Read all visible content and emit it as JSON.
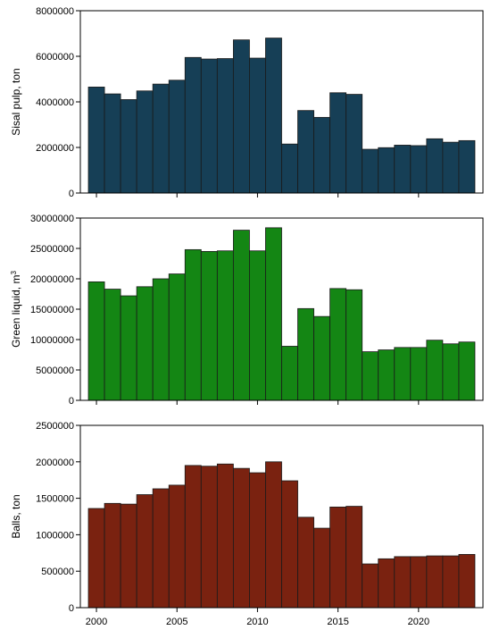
{
  "chart_data": [
    {
      "type": "bar",
      "title": "",
      "xlabel": "",
      "ylabel": "Sisal pulp, ton",
      "ylabel_sup": "",
      "color": "#163f56",
      "x": [
        2000,
        2001,
        2002,
        2003,
        2004,
        2005,
        2006,
        2007,
        2008,
        2009,
        2010,
        2011,
        2012,
        2013,
        2014,
        2015,
        2016,
        2017,
        2018,
        2019,
        2020,
        2021,
        2022,
        2023
      ],
      "values": [
        4650000,
        4350000,
        4100000,
        4480000,
        4780000,
        4950000,
        5950000,
        5880000,
        5900000,
        6720000,
        5920000,
        6800000,
        2150000,
        3620000,
        3320000,
        4400000,
        4330000,
        1920000,
        1990000,
        2100000,
        2080000,
        2380000,
        2230000,
        2300000
      ],
      "ylim": [
        0,
        8000000
      ],
      "yticks": [
        "0",
        "2000000",
        "4000000",
        "6000000",
        "8000000"
      ],
      "xlim": [
        1999,
        2024
      ],
      "xticks": [
        "2000",
        "2005",
        "2010",
        "2015",
        "2020"
      ]
    },
    {
      "type": "bar",
      "title": "",
      "xlabel": "",
      "ylabel": "Green liquid, m",
      "ylabel_sup": "3",
      "color": "#148614",
      "x": [
        2000,
        2001,
        2002,
        2003,
        2004,
        2005,
        2006,
        2007,
        2008,
        2009,
        2010,
        2011,
        2012,
        2013,
        2014,
        2015,
        2016,
        2017,
        2018,
        2019,
        2020,
        2021,
        2022,
        2023
      ],
      "values": [
        19500000,
        18300000,
        17200000,
        18700000,
        20000000,
        20800000,
        24800000,
        24500000,
        24600000,
        28000000,
        24600000,
        28400000,
        8900000,
        15100000,
        13800000,
        18400000,
        18200000,
        8000000,
        8300000,
        8700000,
        8700000,
        9900000,
        9300000,
        9600000
      ],
      "ylim": [
        0,
        30000000
      ],
      "yticks": [
        "0",
        "5000000",
        "10000000",
        "15000000",
        "20000000",
        "25000000",
        "30000000"
      ],
      "xlim": [
        1999,
        2024
      ],
      "xticks": [
        "2000",
        "2005",
        "2010",
        "2015",
        "2020"
      ]
    },
    {
      "type": "bar",
      "title": "",
      "xlabel": "",
      "ylabel": "Balls, ton",
      "ylabel_sup": "",
      "color": "#7a2210",
      "x": [
        2000,
        2001,
        2002,
        2003,
        2004,
        2005,
        2006,
        2007,
        2008,
        2009,
        2010,
        2011,
        2012,
        2013,
        2014,
        2015,
        2016,
        2017,
        2018,
        2019,
        2020,
        2021,
        2022,
        2023
      ],
      "values": [
        1360000,
        1430000,
        1420000,
        1550000,
        1630000,
        1680000,
        1950000,
        1940000,
        1970000,
        1910000,
        1850000,
        2000000,
        1740000,
        1240000,
        1090000,
        1380000,
        1390000,
        600000,
        670000,
        700000,
        700000,
        710000,
        710000,
        730000
      ],
      "ylim": [
        0,
        2500000
      ],
      "yticks": [
        "0",
        "500000",
        "1000000",
        "1500000",
        "2000000",
        "2500000"
      ],
      "xlim": [
        1999,
        2024
      ],
      "xticks": [
        "2000",
        "2005",
        "2010",
        "2015",
        "2020"
      ]
    }
  ]
}
